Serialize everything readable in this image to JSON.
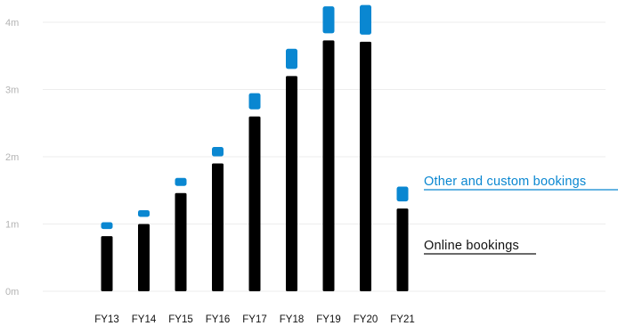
{
  "chart_data": {
    "type": "bar",
    "categories": [
      "FY13",
      "FY14",
      "FY15",
      "FY16",
      "FY17",
      "FY18",
      "FY19",
      "FY20",
      "FY21"
    ],
    "y_tick_labels": [
      "0m",
      "1m",
      "2m",
      "3m",
      "4m"
    ],
    "y_ticks": [
      0,
      1,
      2,
      3,
      4
    ],
    "ylim": [
      0,
      4.1
    ],
    "grid": true,
    "series": [
      {
        "name": "Online bookings",
        "color": "#000000",
        "values": [
          0.82,
          1.0,
          1.46,
          1.9,
          2.6,
          3.2,
          3.73,
          3.71,
          1.23
        ]
      },
      {
        "name": "Other and custom bookings",
        "color": "#0a87d1",
        "values": [
          0.1,
          0.1,
          0.12,
          0.14,
          0.24,
          0.3,
          0.4,
          0.44,
          0.22
        ]
      }
    ],
    "annotations": [
      {
        "text": "Other and custom bookings",
        "color": "#0a87d1",
        "series": 1
      },
      {
        "text": "Online bookings",
        "color": "#111111",
        "series": 0
      }
    ]
  }
}
